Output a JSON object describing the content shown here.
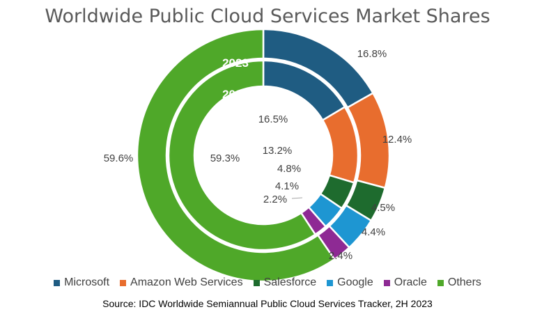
{
  "chart_data": {
    "type": "pie",
    "subtype": "nested-donut",
    "title": "Worldwide Public Cloud Services Market Shares",
    "source": "Source:  IDC Worldwide Semiannual Public Cloud Services Tracker, 2H 2023",
    "categories": [
      "Microsoft",
      "Amazon Web Services",
      "Salesforce",
      "Google",
      "Oracle",
      "Others"
    ],
    "colors": [
      "#1F5C82",
      "#E86D2E",
      "#1E6B2E",
      "#1E96D2",
      "#8E2A94",
      "#4FA829"
    ],
    "series": [
      {
        "name": "2023",
        "ring": "outer",
        "values": [
          16.8,
          12.4,
          4.5,
          4.4,
          2.4,
          59.6
        ],
        "labels": [
          "16.8%",
          "12.4%",
          "4.5%",
          "4.4%",
          "2.4%",
          "59.6%"
        ]
      },
      {
        "name": "2022",
        "ring": "inner",
        "values": [
          16.5,
          13.2,
          4.8,
          4.1,
          2.2,
          59.3
        ],
        "labels": [
          "16.5%",
          "13.2%",
          "4.8%",
          "4.1%",
          "2.2%",
          "59.3%"
        ]
      }
    ],
    "legend_position": "bottom"
  }
}
